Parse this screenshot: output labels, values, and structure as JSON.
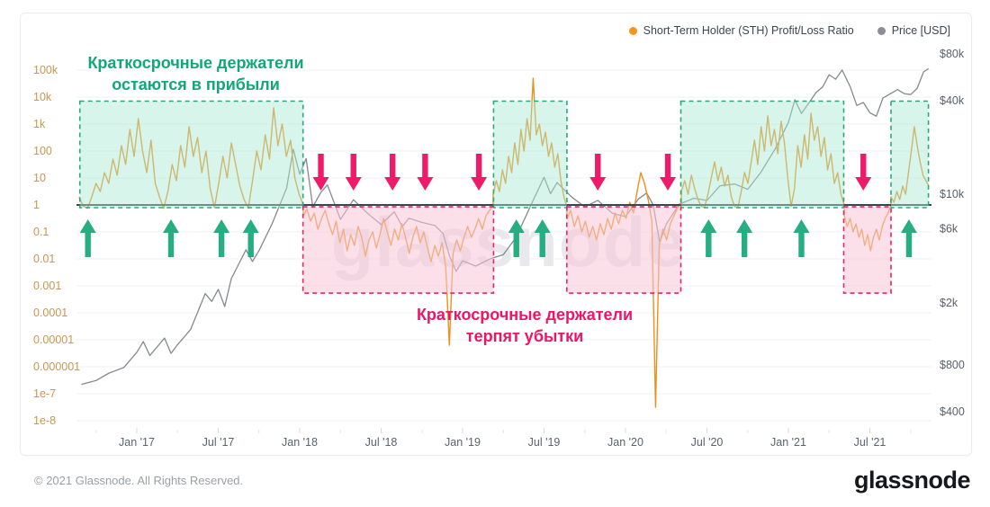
{
  "legend": {
    "items": [
      {
        "label": "Short-Term Holder (STH) Profit/Loss Ratio",
        "color": "#F7941E"
      },
      {
        "label": "Price [USD]",
        "color": "#8C8F96"
      }
    ]
  },
  "annotations": {
    "profit": {
      "line1": "Краткосрочные держатели",
      "line2": "остаются в прибыли",
      "color": "#10A878"
    },
    "loss": {
      "line1": "Краткосрочные держатели",
      "line2": "терпят убытки",
      "color": "#ED1566"
    }
  },
  "watermark": "glassnode",
  "footer": {
    "copyright": "© 2021 Glassnode. All Rights Reserved.",
    "logo_text": "glassnode"
  },
  "chart_data": {
    "type": "line",
    "x_range": [
      2016.63,
      2021.88
    ],
    "x_axis": {
      "ticks": [
        {
          "label": "Jan '17",
          "year": 2017.0
        },
        {
          "label": "Jul '17",
          "year": 2017.5
        },
        {
          "label": "Jan '18",
          "year": 2018.0
        },
        {
          "label": "Jul '18",
          "year": 2018.5
        },
        {
          "label": "Jan '19",
          "year": 2019.0
        },
        {
          "label": "Jul '19",
          "year": 2019.5
        },
        {
          "label": "Jan '20",
          "year": 2020.0
        },
        {
          "label": "Jul '20",
          "year": 2020.5
        },
        {
          "label": "Jan '21",
          "year": 2021.0
        },
        {
          "label": "Jul '21",
          "year": 2021.5
        }
      ]
    },
    "y_axis_left": {
      "scale": "log",
      "color": "#C9964F",
      "ticks": [
        {
          "label": "100k",
          "log10": 5
        },
        {
          "label": "10k",
          "log10": 4
        },
        {
          "label": "1k",
          "log10": 3
        },
        {
          "label": "100",
          "log10": 2
        },
        {
          "label": "10",
          "log10": 1
        },
        {
          "label": "1",
          "log10": 0
        },
        {
          "label": "0.1",
          "log10": -1
        },
        {
          "label": "0.01",
          "log10": -2
        },
        {
          "label": "0.001",
          "log10": -3
        },
        {
          "label": "0.0001",
          "log10": -4
        },
        {
          "label": "0.00001",
          "log10": -5
        },
        {
          "label": "0.000001",
          "log10": -6
        },
        {
          "label": "1e-7",
          "log10": -7
        },
        {
          "label": "1e-8",
          "log10": -8
        }
      ]
    },
    "y_axis_right": {
      "scale": "log",
      "color": "#59616C",
      "ticks": [
        {
          "label": "$80k",
          "value": 80000
        },
        {
          "label": "$40k",
          "value": 40000
        },
        {
          "label": "$10k",
          "value": 10000
        },
        {
          "label": "$6k",
          "value": 6000
        },
        {
          "label": "$2k",
          "value": 2000
        },
        {
          "label": "$800",
          "value": 800
        },
        {
          "label": "$400",
          "value": 400
        }
      ]
    },
    "reference_line": {
      "axis": "left",
      "value": 1,
      "color": "#37474F"
    },
    "series": [
      {
        "name": "Short-Term Holder (STH) Profit/Loss Ratio",
        "axis": "left",
        "color": "#EF8E1D",
        "segments": [
          {
            "from": 2016.646,
            "to": 2018.022,
            "log10_values": [
              0.3,
              -0.05,
              -0.12,
              0.3,
              0.8,
              0.5,
              1.2,
              0.8,
              1.7,
              1.1,
              2.2,
              1.5,
              2.8,
              1.8,
              3.2,
              2.0,
              1.2,
              2.4,
              0.8,
              0.3,
              -0.12,
              0.5,
              1.5,
              0.9,
              2.2,
              1.4,
              2.9,
              1.8,
              2.5,
              1.2,
              2.0,
              0.6,
              -0.1,
              0.8,
              1.8,
              1.0,
              2.3,
              1.5,
              0.7,
              0.2,
              -0.12,
              0.9,
              2.0,
              1.3,
              2.6,
              1.7,
              3.6,
              2.2,
              3.0,
              1.8,
              2.4,
              1.0,
              0.4,
              0.0
            ]
          },
          {
            "from": 2018.022,
            "to": 2019.188,
            "log10_values": [
              -0.4,
              -0.15,
              -0.6,
              -0.3,
              -0.9,
              -0.5,
              -0.2,
              -0.7,
              -1.1,
              -0.6,
              -1.4,
              -0.9,
              -1.7,
              -1.1,
              -1.5,
              -0.8,
              -1.2,
              -1.9,
              -1.3,
              -1.0,
              -1.6,
              -1.1,
              -0.5,
              -1.0,
              -1.5,
              -0.9,
              -1.3,
              -0.7,
              -1.2,
              -1.8,
              -1.2,
              -0.8,
              -1.4,
              -1.0,
              -1.6,
              -2.1,
              -1.5,
              -1.9,
              -1.4,
              -2.3,
              -5.2,
              -1.8,
              -1.3,
              -1.7,
              -1.2,
              -0.8,
              -1.2,
              -0.9,
              -0.5,
              -0.9,
              -0.4,
              -0.2,
              0.0
            ]
          },
          {
            "from": 2019.188,
            "to": 2019.641,
            "log10_values": [
              0.4,
              0.9,
              0.5,
              1.3,
              0.8,
              1.8,
              1.2,
              2.3,
              1.5,
              2.8,
              2.0,
              3.2,
              2.4,
              4.7,
              2.6,
              3.0,
              2.2,
              2.7,
              1.8,
              2.3,
              1.4,
              1.9,
              0.9,
              0.3,
              -0.1
            ]
          },
          {
            "from": 2019.641,
            "to": 2020.343,
            "log10_values": [
              -0.5,
              -0.2,
              -0.8,
              -0.4,
              -1.0,
              -0.6,
              -1.2,
              -0.8,
              -1.3,
              -0.7,
              -1.1,
              -0.5,
              -0.9,
              -0.3,
              -0.7,
              -0.2,
              -0.5,
              0.1,
              -0.3,
              0.5,
              1.2,
              0.8,
              0.2,
              -0.6,
              -7.5,
              -1.5,
              -0.9,
              -1.3,
              -0.7,
              -0.4,
              -0.1,
              0.1
            ]
          },
          {
            "from": 2020.343,
            "to": 2021.343,
            "log10_values": [
              0.5,
              0.9,
              0.4,
              1.1,
              0.6,
              0.2,
              -0.05,
              -0.1,
              0.4,
              1.0,
              1.6,
              0.9,
              1.4,
              0.7,
              1.1,
              0.3,
              -0.05,
              -0.1,
              0.5,
              1.2,
              0.8,
              1.6,
              2.4,
              1.5,
              2.9,
              2.0,
              3.3,
              2.2,
              2.8,
              1.9,
              3.1,
              2.3,
              1.0,
              -0.05,
              0.6,
              2.2,
              1.4,
              2.6,
              1.7,
              3.4,
              2.4,
              2.9,
              1.8,
              2.5,
              1.3,
              1.9,
              0.8,
              1.2,
              0.4,
              0.0
            ]
          },
          {
            "from": 2021.343,
            "to": 2021.63,
            "log10_values": [
              -0.4,
              -0.8,
              -0.5,
              -1.0,
              -0.7,
              -1.2,
              -0.9,
              -1.5,
              -1.1,
              -1.7,
              -1.2,
              -0.9,
              -1.3,
              -0.8,
              -0.5,
              -0.3,
              0.0
            ]
          },
          {
            "from": 2021.63,
            "to": 2021.862,
            "log10_values": [
              0.3,
              0.1,
              0.5,
              0.2,
              0.7,
              0.4,
              1.2,
              2.0,
              2.9,
              2.2,
              1.6,
              1.1,
              0.9,
              0.7
            ]
          }
        ]
      },
      {
        "name": "Price [USD]",
        "axis": "right",
        "color": "#85898F",
        "points": [
          [
            2016.66,
            600
          ],
          [
            2016.75,
            635
          ],
          [
            2016.83,
            710
          ],
          [
            2016.92,
            770
          ],
          [
            2017.0,
            965
          ],
          [
            2017.04,
            1130
          ],
          [
            2017.08,
            920
          ],
          [
            2017.17,
            1190
          ],
          [
            2017.21,
            950
          ],
          [
            2017.25,
            1080
          ],
          [
            2017.33,
            1350
          ],
          [
            2017.42,
            2300
          ],
          [
            2017.46,
            2050
          ],
          [
            2017.5,
            2450
          ],
          [
            2017.54,
            1900
          ],
          [
            2017.58,
            2870
          ],
          [
            2017.67,
            4400
          ],
          [
            2017.71,
            3700
          ],
          [
            2017.75,
            4350
          ],
          [
            2017.83,
            6450
          ],
          [
            2017.92,
            11000
          ],
          [
            2017.96,
            19500
          ],
          [
            2018.0,
            13500
          ],
          [
            2018.04,
            17000
          ],
          [
            2018.08,
            8300
          ],
          [
            2018.13,
            10300
          ],
          [
            2018.17,
            11500
          ],
          [
            2018.25,
            6900
          ],
          [
            2018.33,
            9240
          ],
          [
            2018.42,
            7490
          ],
          [
            2018.5,
            6400
          ],
          [
            2018.58,
            7730
          ],
          [
            2018.63,
            6200
          ],
          [
            2018.67,
            7030
          ],
          [
            2018.75,
            6600
          ],
          [
            2018.83,
            6300
          ],
          [
            2018.88,
            5600
          ],
          [
            2018.92,
            4020
          ],
          [
            2018.96,
            3200
          ],
          [
            2019.0,
            3740
          ],
          [
            2019.08,
            3460
          ],
          [
            2019.17,
            3850
          ],
          [
            2019.25,
            4100
          ],
          [
            2019.33,
            5320
          ],
          [
            2019.42,
            8550
          ],
          [
            2019.5,
            12900
          ],
          [
            2019.54,
            10100
          ],
          [
            2019.58,
            11900
          ],
          [
            2019.67,
            9600
          ],
          [
            2019.75,
            8300
          ],
          [
            2019.83,
            9150
          ],
          [
            2019.92,
            7550
          ],
          [
            2020.0,
            7190
          ],
          [
            2020.08,
            9350
          ],
          [
            2020.13,
            10200
          ],
          [
            2020.17,
            8550
          ],
          [
            2020.21,
            4900
          ],
          [
            2020.25,
            6440
          ],
          [
            2020.33,
            8650
          ],
          [
            2020.42,
            9450
          ],
          [
            2020.5,
            9140
          ],
          [
            2020.58,
            11350
          ],
          [
            2020.67,
            11650
          ],
          [
            2020.75,
            10780
          ],
          [
            2020.83,
            13800
          ],
          [
            2020.92,
            19700
          ],
          [
            2021.0,
            29000
          ],
          [
            2021.04,
            40500
          ],
          [
            2021.08,
            33100
          ],
          [
            2021.17,
            45200
          ],
          [
            2021.21,
            49000
          ],
          [
            2021.25,
            58800
          ],
          [
            2021.29,
            55000
          ],
          [
            2021.33,
            63000
          ],
          [
            2021.38,
            49000
          ],
          [
            2021.42,
            37300
          ],
          [
            2021.46,
            39000
          ],
          [
            2021.5,
            33500
          ],
          [
            2021.54,
            31800
          ],
          [
            2021.58,
            41600
          ],
          [
            2021.67,
            47150
          ],
          [
            2021.71,
            44500
          ],
          [
            2021.75,
            43800
          ],
          [
            2021.79,
            48000
          ],
          [
            2021.83,
            61300
          ],
          [
            2021.86,
            64400
          ]
        ]
      }
    ],
    "regions": {
      "profit": {
        "fill": "rgba(167,233,210,0.45)",
        "stroke": "#2AA87C",
        "y_log_range": [
          -0.1,
          3.85
        ],
        "x_ranges": [
          [
            2016.65,
            2018.02
          ],
          [
            2019.19,
            2019.64
          ],
          [
            2020.34,
            2021.34
          ],
          [
            2021.63,
            2021.86
          ]
        ]
      },
      "loss": {
        "fill": "rgba(248,198,215,0.55)",
        "stroke": "#E62566",
        "y_log_range": [
          -3.27,
          -0.07
        ],
        "x_ranges": [
          [
            2018.02,
            2019.19
          ],
          [
            2019.64,
            2020.34
          ],
          [
            2021.34,
            2021.63
          ]
        ]
      }
    },
    "arrows": {
      "up": {
        "color": "#27AE80",
        "years": [
          2016.7,
          2017.21,
          2017.52,
          2017.7,
          2019.33,
          2019.49,
          2020.51,
          2020.73,
          2021.08,
          2021.74
        ]
      },
      "down": {
        "color": "#F01A6A",
        "years": [
          2018.13,
          2018.33,
          2018.57,
          2018.77,
          2019.1,
          2019.83,
          2020.26,
          2021.46
        ]
      }
    }
  }
}
